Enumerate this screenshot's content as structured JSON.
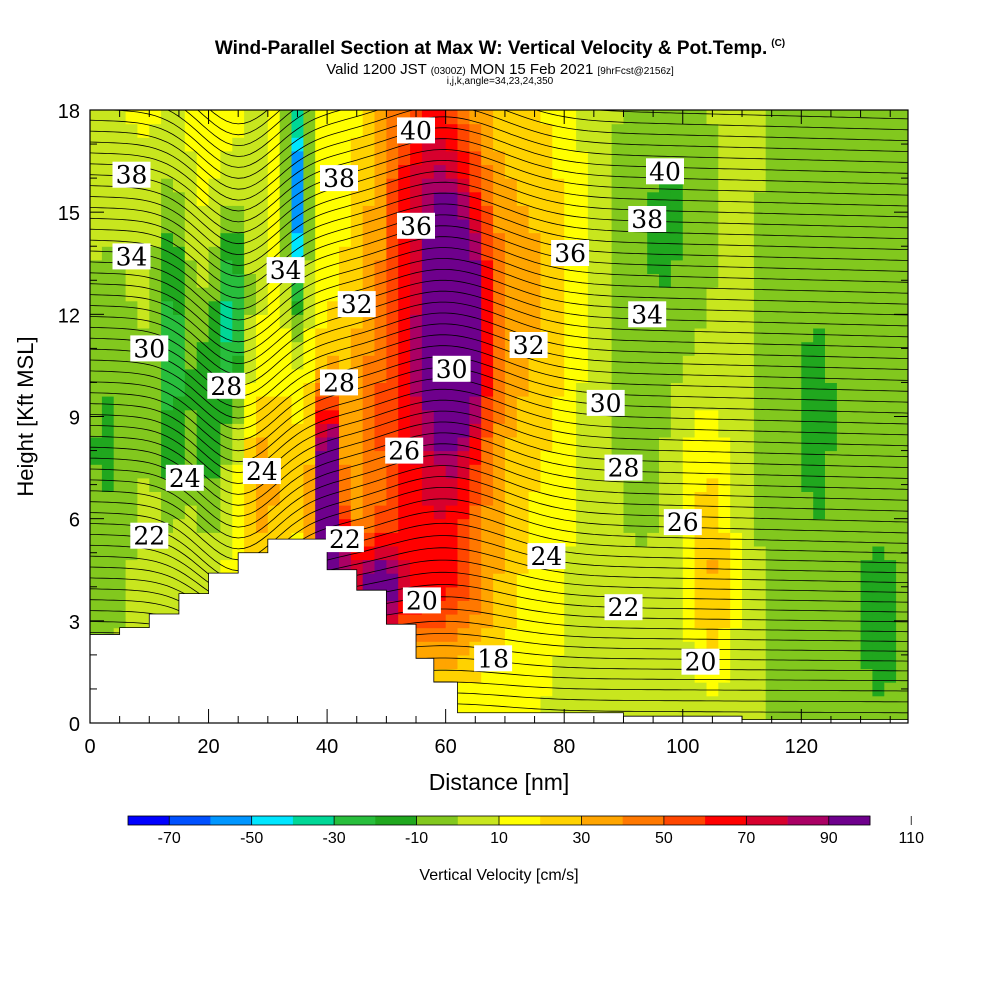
{
  "title": {
    "main": "Wind-Parallel Section at Max W: Vertical Velocity & Pot.Temp.",
    "main_mark": "(C)",
    "valid_prefix": "Valid 1200 JST",
    "valid_zulu": "(0300Z)",
    "valid_date": "MON 15 Feb 2021",
    "forecast": "[9hrFcst@2156z]",
    "grid_info": "i,j,k,angle=34,23,24,350"
  },
  "chart_data": {
    "type": "contour",
    "xlabel": "Distance [nm]",
    "ylabel": "Height [Kft MSL]",
    "xlim": [
      0,
      138
    ],
    "ylim": [
      0,
      18
    ],
    "xticks": [
      0,
      20,
      40,
      60,
      80,
      100,
      120
    ],
    "yticks": [
      0,
      3,
      6,
      9,
      12,
      15,
      18
    ],
    "colorbar": {
      "label": "Vertical Velocity [cm/s]",
      "ticks": [
        -70,
        -50,
        -30,
        -10,
        10,
        30,
        50,
        70,
        90,
        110
      ],
      "colors": [
        "#0000ff",
        "#0050ff",
        "#0096ff",
        "#00e6ff",
        "#00d796",
        "#28be3c",
        "#20a71e",
        "#82c81e",
        "#c8e61e",
        "#ffff00",
        "#ffd200",
        "#ffa500",
        "#ff7800",
        "#ff4600",
        "#ff0000",
        "#d7002d",
        "#aa0064",
        "#6e008c"
      ]
    },
    "terrain_top_kft": [
      [
        0,
        2.6
      ],
      [
        5,
        2.8
      ],
      [
        10,
        3.2
      ],
      [
        15,
        3.8
      ],
      [
        20,
        4.4
      ],
      [
        25,
        5.0
      ],
      [
        30,
        5.4
      ],
      [
        35,
        5.4
      ],
      [
        39,
        5.4
      ],
      [
        40,
        4.5
      ],
      [
        45,
        3.9
      ],
      [
        50,
        2.9
      ],
      [
        55,
        1.9
      ],
      [
        58,
        1.2
      ],
      [
        62,
        0.3
      ],
      [
        75,
        0.3
      ],
      [
        90,
        0.2
      ],
      [
        110,
        0.1
      ],
      [
        138,
        0.1
      ]
    ],
    "theta_labels": [
      {
        "v": "38",
        "x": 7,
        "y": 16.1
      },
      {
        "v": "34",
        "x": 7,
        "y": 13.7
      },
      {
        "v": "30",
        "x": 10,
        "y": 11.0
      },
      {
        "v": "22",
        "x": 10,
        "y": 5.5
      },
      {
        "v": "24",
        "x": 16,
        "y": 7.2
      },
      {
        "v": "28",
        "x": 23,
        "y": 9.9
      },
      {
        "v": "24",
        "x": 29,
        "y": 7.4
      },
      {
        "v": "34",
        "x": 33,
        "y": 13.3
      },
      {
        "v": "38",
        "x": 42,
        "y": 16.0
      },
      {
        "v": "28",
        "x": 42,
        "y": 10.0
      },
      {
        "v": "32",
        "x": 45,
        "y": 12.3
      },
      {
        "v": "22",
        "x": 43,
        "y": 5.4
      },
      {
        "v": "40",
        "x": 55,
        "y": 17.4
      },
      {
        "v": "36",
        "x": 55,
        "y": 14.6
      },
      {
        "v": "26",
        "x": 53,
        "y": 8.0
      },
      {
        "v": "30",
        "x": 61,
        "y": 10.4
      },
      {
        "v": "20",
        "x": 56,
        "y": 3.6
      },
      {
        "v": "32",
        "x": 74,
        "y": 11.1
      },
      {
        "v": "24",
        "x": 77,
        "y": 4.9
      },
      {
        "v": "18",
        "x": 68,
        "y": 1.9
      },
      {
        "v": "36",
        "x": 81,
        "y": 13.8
      },
      {
        "v": "40",
        "x": 97,
        "y": 16.2
      },
      {
        "v": "38",
        "x": 94,
        "y": 14.8
      },
      {
        "v": "34",
        "x": 94,
        "y": 12.0
      },
      {
        "v": "30",
        "x": 87,
        "y": 9.4
      },
      {
        "v": "28",
        "x": 90,
        "y": 7.5
      },
      {
        "v": "26",
        "x": 100,
        "y": 5.9
      },
      {
        "v": "22",
        "x": 90,
        "y": 3.4
      },
      {
        "v": "20",
        "x": 103,
        "y": 1.8
      }
    ]
  }
}
